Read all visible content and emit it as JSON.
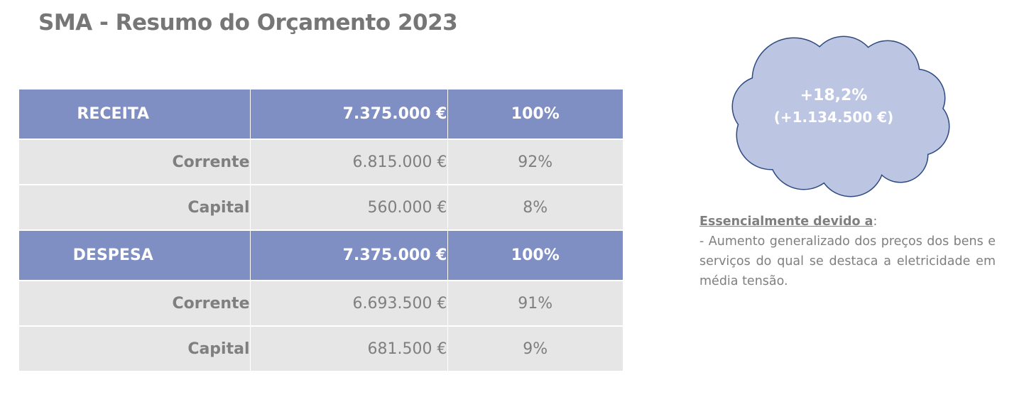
{
  "title": "SMA - Resumo do Orçamento 2023",
  "table": {
    "receita": {
      "label": "RECEITA",
      "amount": "7.375.000 €",
      "pct": "100%",
      "rows": [
        {
          "label": "Corrente",
          "amount": "6.815.000 €",
          "pct": "92%"
        },
        {
          "label": "Capital",
          "amount": "560.000 €",
          "pct": "8%"
        }
      ]
    },
    "despesa": {
      "label": "DESPESA",
      "amount": "7.375.000 €",
      "pct": "100%",
      "rows": [
        {
          "label": "Corrente",
          "amount": "6.693.500 €",
          "pct": "91%"
        },
        {
          "label": "Capital",
          "amount": "681.500 €",
          "pct": "9%"
        }
      ]
    }
  },
  "callout": {
    "change_pct": "+18,2%",
    "change_amount": "(+1.134.500 €)"
  },
  "note": {
    "heading": "Essencialmente devido a",
    "heading_suffix": ":",
    "body": "- Aumento generalizado dos preços dos bens e serviços do qual se destaca a eletricidade em média tensão."
  },
  "colors": {
    "header_fill": "#7f8fc3",
    "row_fill": "#e7e6e6",
    "cloud_fill": "#bcc5e1",
    "cloud_stroke": "#2f4a7f",
    "text_gray": "#7f7f7f"
  }
}
